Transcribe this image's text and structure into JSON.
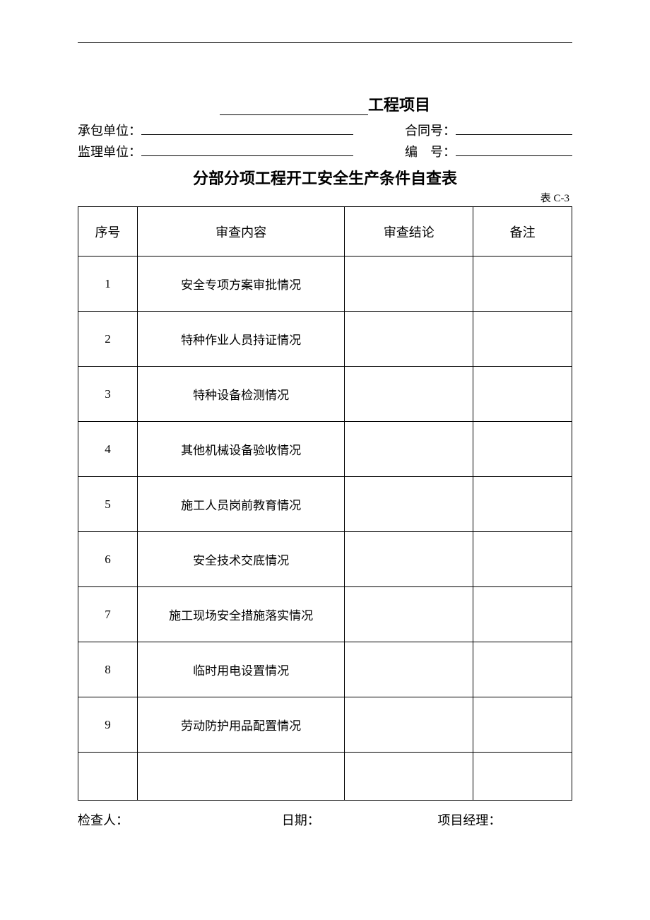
{
  "header": {
    "project_suffix": "工程项目",
    "contractor_label": "承包单位：",
    "contract_no_label": "合同号：",
    "supervisor_label": "监理单位：",
    "serial_no_label": "编　号："
  },
  "subtitle": "分部分项工程开工安全生产条件自查表",
  "table_code": "表 C-3",
  "table": {
    "columns": [
      "序号",
      "审查内容",
      "审查结论",
      "备注"
    ],
    "rows": [
      {
        "num": "1",
        "content": "安全专项方案审批情况",
        "result": "",
        "note": ""
      },
      {
        "num": "2",
        "content": "特种作业人员持证情况",
        "result": "",
        "note": ""
      },
      {
        "num": "3",
        "content": "特种设备检测情况",
        "result": "",
        "note": ""
      },
      {
        "num": "4",
        "content": "其他机械设备验收情况",
        "result": "",
        "note": ""
      },
      {
        "num": "5",
        "content": "施工人员岗前教育情况",
        "result": "",
        "note": ""
      },
      {
        "num": "6",
        "content": "安全技术交底情况",
        "result": "",
        "note": ""
      },
      {
        "num": "7",
        "content": "施工现场安全措施落实情况",
        "result": "",
        "note": ""
      },
      {
        "num": "8",
        "content": "临时用电设置情况",
        "result": "",
        "note": ""
      },
      {
        "num": "9",
        "content": "劳动防护用品配置情况",
        "result": "",
        "note": ""
      },
      {
        "num": "",
        "content": "",
        "result": "",
        "note": ""
      }
    ]
  },
  "footer": {
    "inspector_label": "检查人：",
    "date_label": "日期：",
    "manager_label": "项目经理："
  },
  "colors": {
    "text": "#000000",
    "background": "#ffffff",
    "border": "#000000"
  }
}
